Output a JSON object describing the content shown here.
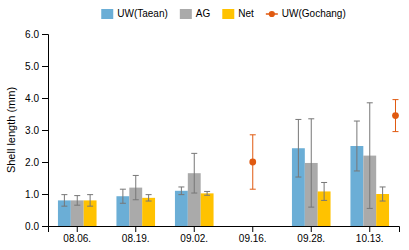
{
  "chart_data": {
    "type": "bar",
    "categories": [
      "08.06.",
      "08.19.",
      "09.02.",
      "09.16.",
      "09.28.",
      "10.13."
    ],
    "series": [
      {
        "name": "UW(Taean)",
        "type": "bar",
        "color": "#6BAED6",
        "values": [
          0.8,
          0.93,
          1.1,
          null,
          2.43,
          2.5
        ],
        "error": [
          0.18,
          0.22,
          0.12,
          null,
          0.9,
          0.78
        ]
      },
      {
        "name": "AG",
        "type": "bar",
        "color": "#AAAAAA",
        "values": [
          0.8,
          1.2,
          1.65,
          null,
          1.97,
          2.2
        ],
        "error": [
          0.15,
          0.38,
          0.62,
          null,
          1.38,
          1.65
        ]
      },
      {
        "name": "Net",
        "type": "bar",
        "color": "#FFC200",
        "values": [
          0.8,
          0.88,
          1.02,
          null,
          1.08,
          1.0
        ],
        "error": [
          0.18,
          0.1,
          0.06,
          null,
          0.28,
          0.22
        ]
      },
      {
        "name": "UW(Gochang)",
        "type": "scatter",
        "color": "#E05A10",
        "marker": "circle",
        "values": [
          null,
          null,
          null,
          2.0,
          null,
          3.45
        ],
        "error_low": [
          null,
          null,
          null,
          0.85,
          null,
          0.5
        ],
        "error_high": [
          null,
          null,
          null,
          0.85,
          null,
          0.5
        ]
      }
    ],
    "ylabel": "Shell length (mm)",
    "ylim": [
      0,
      6.0
    ],
    "yticks": [
      {
        "value": 0.0,
        "label": "0.0"
      },
      {
        "value": 1.0,
        "label": "1.0"
      },
      {
        "value": 2.0,
        "label": "2.0"
      },
      {
        "value": 3.0,
        "label": "3.0"
      },
      {
        "value": 4.0,
        "label": "4.0"
      },
      {
        "value": 5.0,
        "label": "5.0"
      },
      {
        "value": 6.0,
        "label": "6.0"
      }
    ],
    "grid": false
  }
}
